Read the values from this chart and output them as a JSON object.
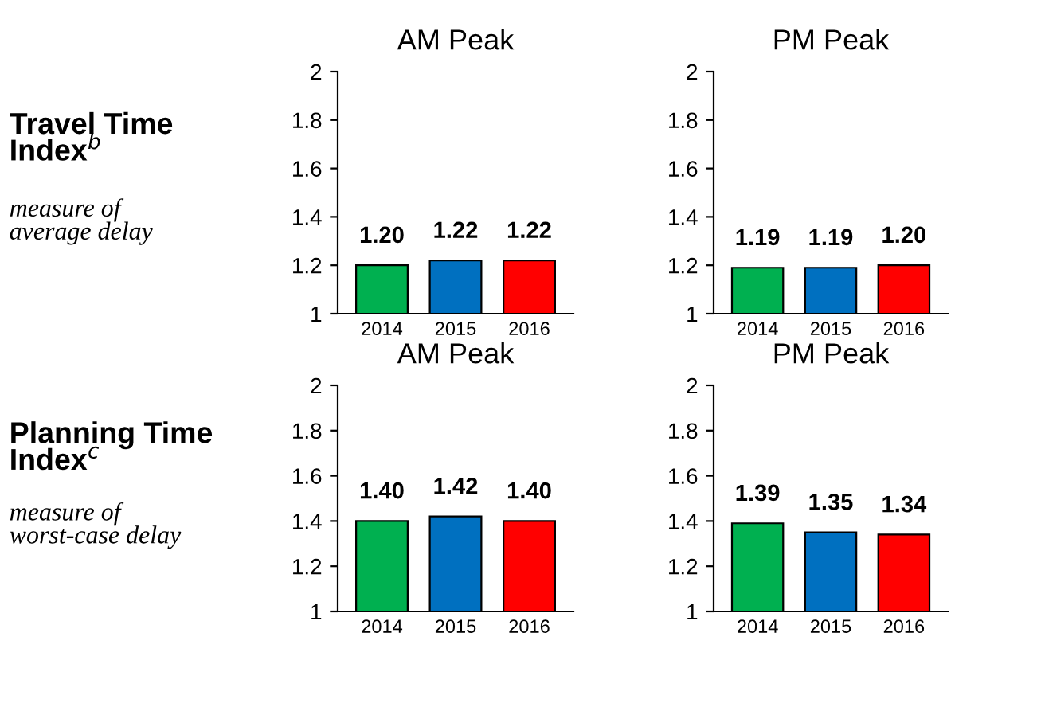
{
  "chart_data": [
    {
      "type": "other",
      "title": "Travel Time Index$^{b}$",
      "subtitle": "measure of average delay"
    },
    {
      "type": "bar",
      "title": "AM Peak",
      "categories": [
        "2014",
        "2015",
        "2016"
      ],
      "values": [
        1.2,
        1.22,
        1.22
      ],
      "value_labels": [
        "1.20",
        "1.22",
        "1.22"
      ],
      "colors": [
        "#00b050",
        "#0070c0",
        "#ff0000"
      ],
      "ylim": [
        1,
        2
      ],
      "yticks": [
        1,
        1.2,
        1.4,
        1.6,
        1.8,
        2
      ],
      "grid": false,
      "legend": false
    },
    {
      "type": "bar",
      "title": "PM Peak",
      "categories": [
        "2014",
        "2015",
        "2016"
      ],
      "values": [
        1.19,
        1.19,
        1.2
      ],
      "value_labels": [
        "1.19",
        "1.19",
        "1.20"
      ],
      "colors": [
        "#00b050",
        "#0070c0",
        "#ff0000"
      ],
      "ylim": [
        1,
        2
      ],
      "yticks": [
        1,
        1.2,
        1.4,
        1.6,
        1.8,
        2
      ],
      "grid": false,
      "legend": false
    },
    {
      "type": "other",
      "title": "Planning Time Index$^{c}$",
      "subtitle": "measure of worst-case delay"
    },
    {
      "type": "bar",
      "title": "AM Peak",
      "categories": [
        "2014",
        "2015",
        "2016"
      ],
      "values": [
        1.4,
        1.42,
        1.4
      ],
      "value_labels": [
        "1.40",
        "1.42",
        "1.40"
      ],
      "colors": [
        "#00b050",
        "#0070c0",
        "#ff0000"
      ],
      "ylim": [
        1,
        2
      ],
      "yticks": [
        1,
        1.2,
        1.4,
        1.6,
        1.8,
        2
      ],
      "grid": false,
      "legend": false
    },
    {
      "type": "bar",
      "title": "PM Peak",
      "categories": [
        "2014",
        "2015",
        "2016"
      ],
      "values": [
        1.39,
        1.35,
        1.34
      ],
      "value_labels": [
        "1.39",
        "1.35",
        "1.34"
      ],
      "colors": [
        "#00b050",
        "#0070c0",
        "#ff0000"
      ],
      "ylim": [
        1,
        2
      ],
      "yticks": [
        1,
        1.2,
        1.4,
        1.6,
        1.8,
        2
      ],
      "grid": false,
      "legend": false
    }
  ]
}
